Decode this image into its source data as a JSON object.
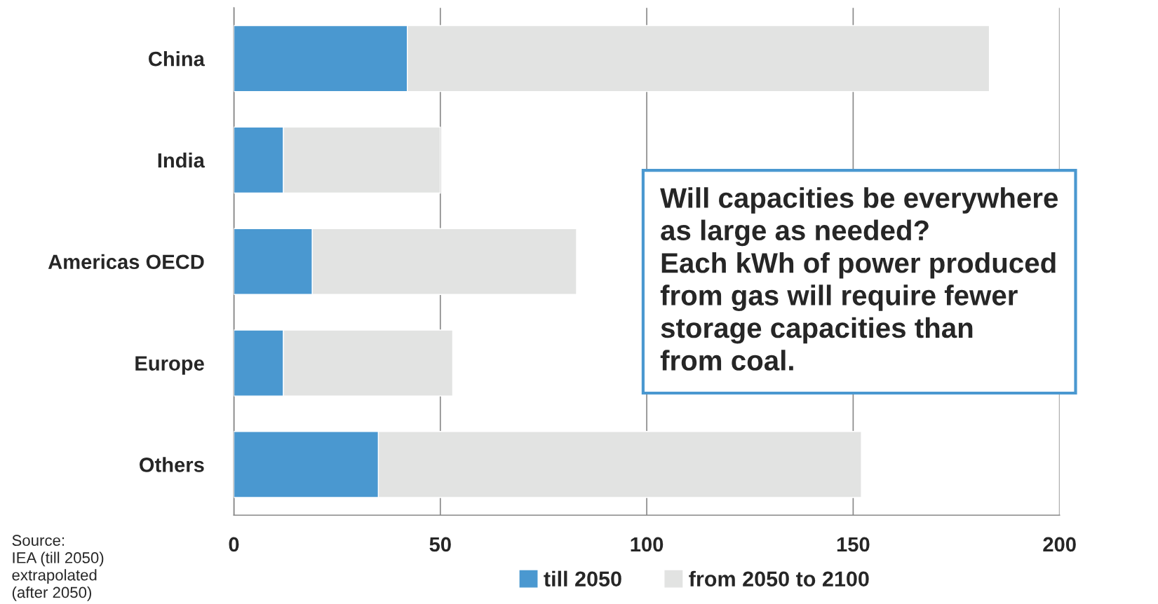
{
  "chart_data": {
    "type": "bar",
    "orientation": "horizontal",
    "stacked": true,
    "categories": [
      "China",
      "India",
      "Americas OECD",
      "Europe",
      "Others"
    ],
    "series": [
      {
        "name": "till 2050",
        "color": "#4a98d0",
        "values": [
          42,
          12,
          19,
          12,
          35
        ]
      },
      {
        "name": "from 2050 to 2100",
        "color": "#e2e3e2",
        "values": [
          141,
          38,
          64,
          41,
          117
        ]
      }
    ],
    "xlim": [
      0,
      200
    ],
    "xticks": [
      0,
      50,
      100,
      150,
      200
    ],
    "grid": "x",
    "legend": "bottom",
    "annotations": [
      "Will capacities be everywhere\nas large as needed?\nEach kWh of power produced\nfrom gas will require fewer\nstorage capacities than\nfrom coal.",
      "Source:\nIEA (till 2050)\nextrapolated\n(after 2050)"
    ]
  }
}
